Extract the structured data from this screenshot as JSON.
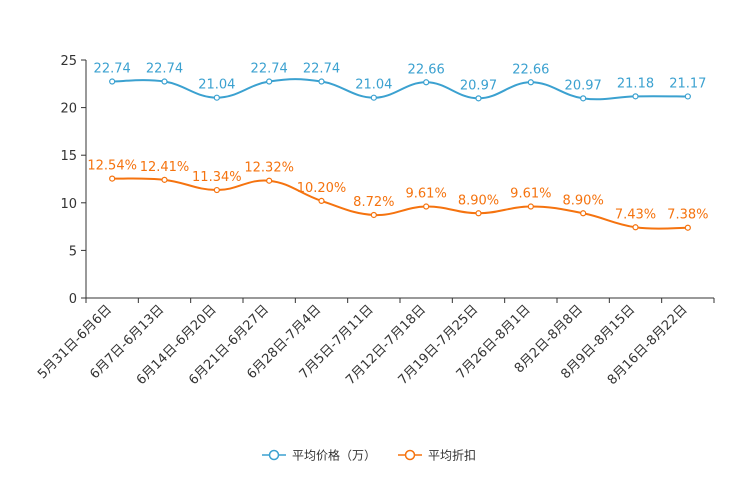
{
  "chart_data": {
    "type": "line",
    "categories": [
      "5月31日-6月6日",
      "6月7日-6月13日",
      "6月14日-6月20日",
      "6月21日-6月27日",
      "6月28日-7月4日",
      "7月5日-7月11日",
      "7月12日-7月18日",
      "7月19日-7月25日",
      "7月26日-8月1日",
      "8月2日-8月8日",
      "8月9日-8月15日",
      "8月16日-8月22日"
    ],
    "ylim": [
      0,
      25
    ],
    "yticks": [
      0,
      5,
      10,
      15,
      20,
      25
    ],
    "series": [
      {
        "name": "平均价格（万）",
        "color": "#3ba1d0",
        "values": [
          22.74,
          22.74,
          21.04,
          22.74,
          22.74,
          21.04,
          22.66,
          20.97,
          22.66,
          20.97,
          21.18,
          21.17
        ],
        "labels": [
          "22.74",
          "22.74",
          "21.04",
          "22.74",
          "22.74",
          "21.04",
          "22.66",
          "20.97",
          "22.66",
          "20.97",
          "21.18",
          "21.17"
        ]
      },
      {
        "name": "平均折扣",
        "color": "#f5730f",
        "values": [
          12.54,
          12.41,
          11.34,
          12.32,
          10.2,
          8.72,
          9.61,
          8.9,
          9.61,
          8.9,
          7.43,
          7.38
        ],
        "labels": [
          "12.54%",
          "12.41%",
          "11.34%",
          "12.32%",
          "10.20%",
          "8.72%",
          "9.61%",
          "8.90%",
          "9.61%",
          "8.90%",
          "7.43%",
          "7.38%"
        ]
      }
    ],
    "legend_position": "bottom-center"
  }
}
